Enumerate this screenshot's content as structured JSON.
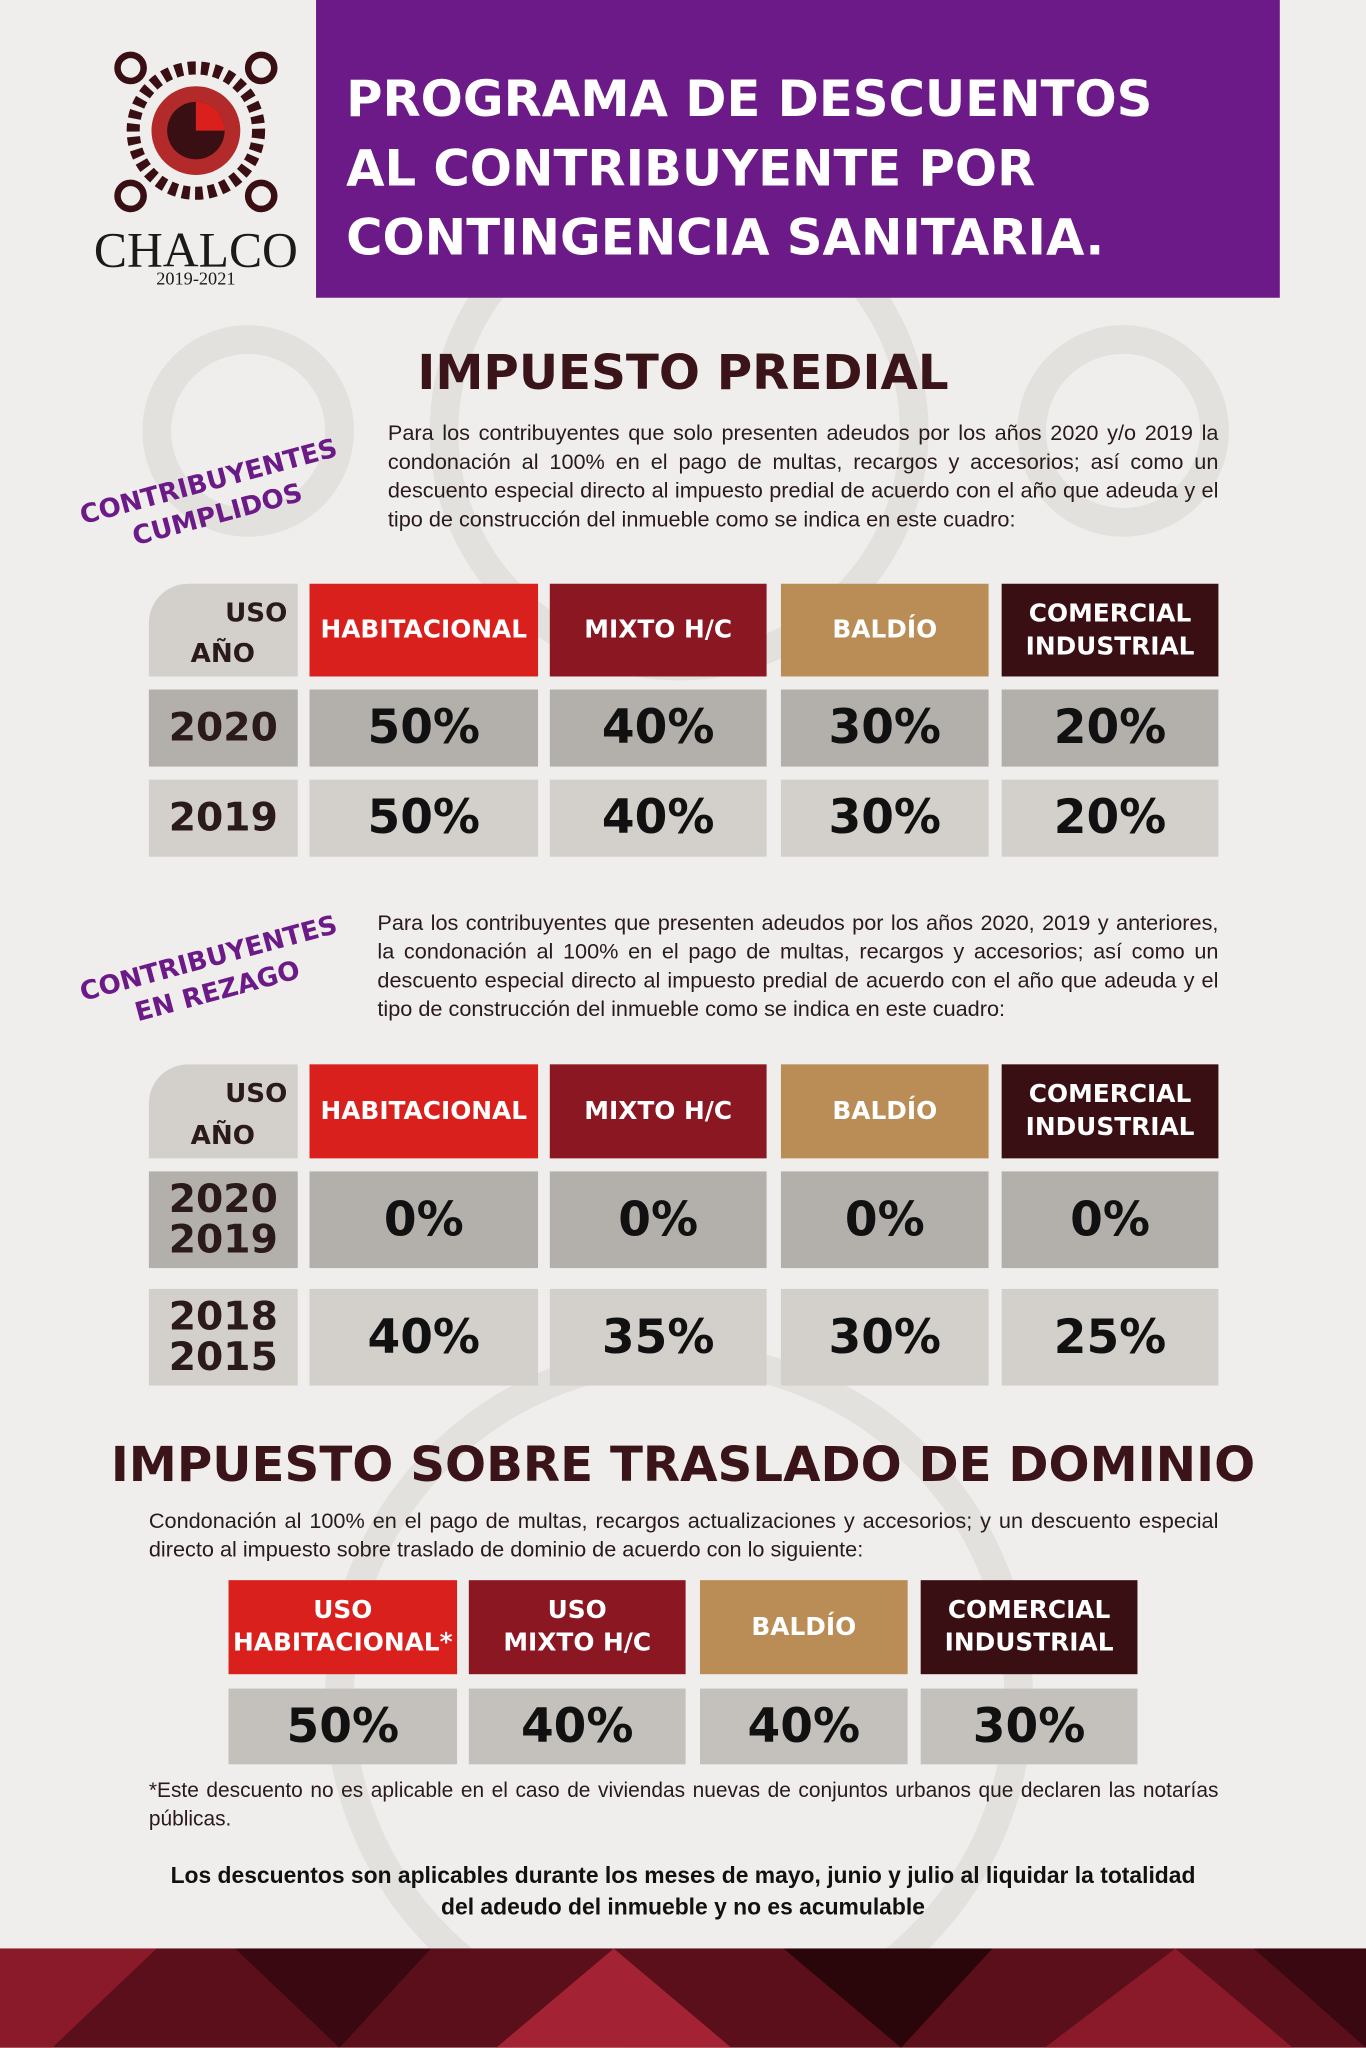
{
  "header": {
    "logo_name": "CHALCO",
    "logo_years": "2019-2021",
    "title": [
      "PROGRAMA DE DESCUENTOS",
      "AL CONTRIBUYENTE POR",
      "CONTINGENCIA SANITARIA."
    ]
  },
  "predial": {
    "title": "IMPUESTO PREDIAL",
    "sections": [
      {
        "label": [
          "CONTRIBUYENTES",
          "CUMPLIDOS"
        ],
        "text": "Para los contribuyentes que solo presenten adeudos por los años 2020 y/o 2019 la condonación al 100% en el pago de multas, recargos y accesorios; así como un descuento especial directo al impuesto predial de acuerdo con el año que adeuda y el tipo de construcción del inmueble como se indica en este cuadro:",
        "table": {
          "corner": [
            "USO",
            "AÑO"
          ],
          "columns": [
            [
              "HABITACIONAL"
            ],
            [
              "MIXTO H/C"
            ],
            [
              "BALDÍO"
            ],
            [
              "COMERCIAL",
              "INDUSTRIAL"
            ]
          ],
          "rows": [
            {
              "year": [
                "2020"
              ],
              "cells": [
                "50%",
                "40%",
                "30%",
                "20%"
              ]
            },
            {
              "year": [
                "2019"
              ],
              "cells": [
                "50%",
                "40%",
                "30%",
                "20%"
              ]
            }
          ]
        }
      },
      {
        "label": [
          "CONTRIBUYENTES",
          "EN REZAGO"
        ],
        "text": "Para los contribuyentes que presenten adeudos por los años 2020, 2019 y anteriores, la condonación al 100% en el pago de multas, recargos y accesorios; así como un descuento especial directo al impuesto predial de acuerdo con el año que adeuda y el tipo de construcción del inmueble como se indica en este cuadro:",
        "table": {
          "corner": [
            "USO",
            "AÑO"
          ],
          "columns": [
            [
              "HABITACIONAL"
            ],
            [
              "MIXTO H/C"
            ],
            [
              "BALDÍO"
            ],
            [
              "COMERCIAL",
              "INDUSTRIAL"
            ]
          ],
          "rows": [
            {
              "year": [
                "2020",
                "2019"
              ],
              "cells": [
                "0%",
                "0%",
                "0%",
                "0%"
              ]
            },
            {
              "year": [
                "2018",
                "2015"
              ],
              "cells": [
                "40%",
                "35%",
                "30%",
                "25%"
              ]
            }
          ]
        }
      }
    ]
  },
  "traslado": {
    "title": "IMPUESTO SOBRE TRASLADO DE DOMINIO",
    "text": "Condonación al 100% en el pago de multas, recargos actualizaciones y accesorios; y un descuento especial directo al impuesto sobre traslado de dominio de acuerdo con lo siguiente:",
    "columns": [
      [
        "USO",
        "HABITACIONAL*"
      ],
      [
        "USO",
        "MIXTO H/C"
      ],
      [
        "BALDÍO"
      ],
      [
        "COMERCIAL",
        "INDUSTRIAL"
      ]
    ],
    "cells": [
      "50%",
      "40%",
      "40%",
      "30%"
    ]
  },
  "footnote": "*Este descuento no es aplicable en el caso de viviendas nuevas de conjuntos urbanos que declaren las notarías públicas.",
  "closing": "Los descuentos son aplicables durante los meses de mayo, junio y julio al liquidar la totalidad del adeudo del inmueble y no es acumulable"
}
